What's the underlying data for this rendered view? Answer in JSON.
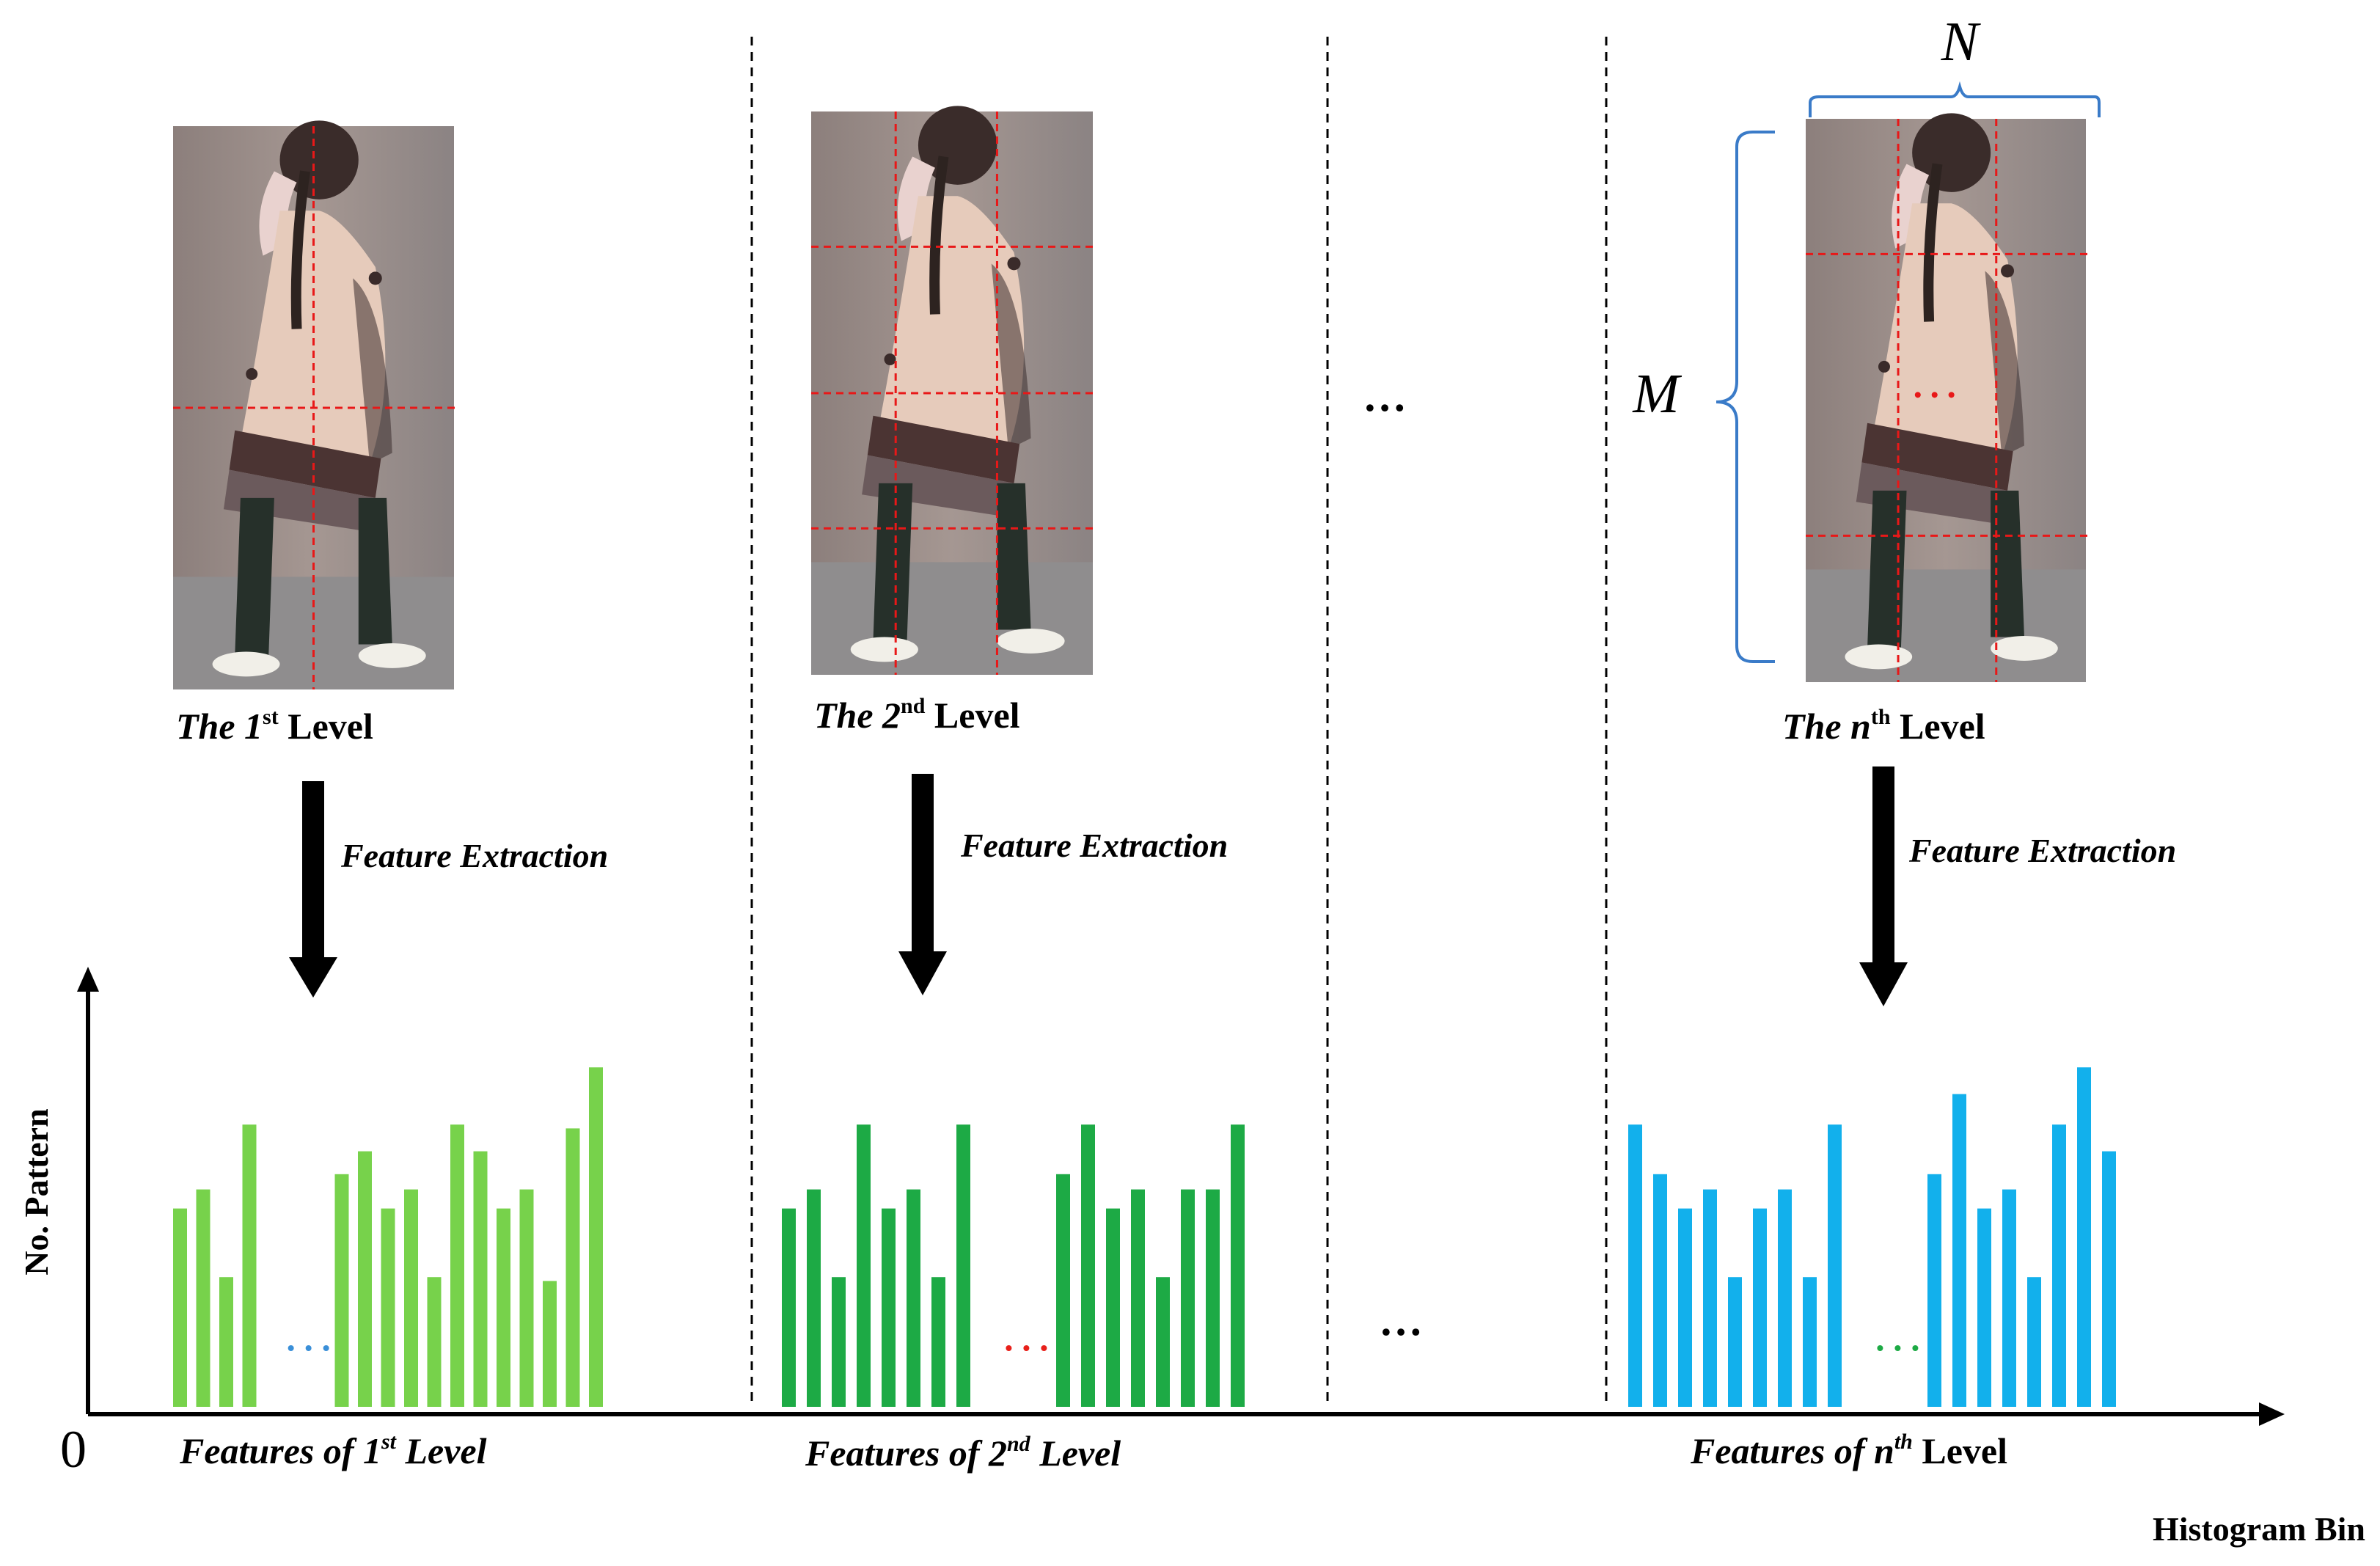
{
  "levels": [
    {
      "caption": {
        "pre": "The ",
        "ord": "1",
        "sup": "st",
        "post": " Level"
      },
      "extraction": "Feature Extraction",
      "features": {
        "pre": "Features of ",
        "ord": "1",
        "sup": "st",
        "post": " Level"
      },
      "bar_color": "#77d24b",
      "values": [
        0.52,
        0.57,
        0.34,
        0.74,
        null,
        null,
        null,
        0.61,
        0.67,
        0.52,
        0.57,
        0.34,
        0.74,
        0.67,
        0.52,
        0.57,
        0.33,
        0.73,
        0.89
      ],
      "gap_dots_color": "#3a8fd8",
      "grid": {
        "cols": 1,
        "rows": 1
      }
    },
    {
      "caption": {
        "pre": "The ",
        "ord": "2",
        "sup": "nd",
        "post": " Level"
      },
      "extraction": "Feature Extraction",
      "features": {
        "pre": "Features of ",
        "ord": "2",
        "sup": "nd",
        "post": "  Level"
      },
      "bar_color": "#1daa45",
      "values": [
        0.52,
        0.57,
        0.34,
        0.74,
        0.52,
        0.57,
        0.34,
        0.74,
        null,
        null,
        null,
        0.61,
        0.74,
        0.52,
        0.57,
        0.34,
        0.57,
        0.57,
        0.74
      ],
      "gap_dots_color": "#e8201a",
      "grid": {
        "cols": 2,
        "rows": 3
      }
    },
    {
      "caption": {
        "pre": "The ",
        "ord": "n",
        "sup": "th",
        "post": "  Level"
      },
      "extraction": "Feature Extraction",
      "features": {
        "pre": "Features of ",
        "ord": "n",
        "sup": "th",
        "post": "  Level"
      },
      "bar_color": "#12b0ec",
      "values": [
        0.74,
        0.61,
        0.52,
        0.57,
        0.34,
        0.52,
        0.57,
        0.34,
        0.74,
        null,
        null,
        null,
        0.61,
        0.82,
        0.52,
        0.57,
        0.34,
        0.74,
        0.89,
        0.67
      ],
      "gap_dots_color": "#1daa45",
      "grid": {
        "cols": 2,
        "rows": 3
      }
    }
  ],
  "ellipsis": "…",
  "dim_n": "N",
  "dim_m": "M",
  "axis": {
    "y_label": "No. Pattern",
    "x_label": "Histogram  Bin",
    "origin": "0"
  },
  "colors": {
    "grid_line": "#e81818",
    "brace": "#3a7bc8",
    "divider": "#000000"
  }
}
